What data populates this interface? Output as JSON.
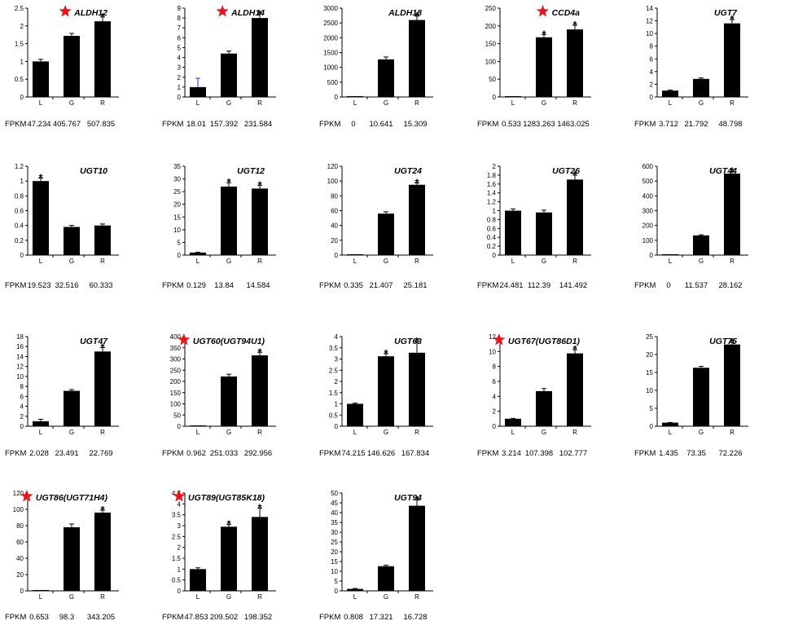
{
  "figure": {
    "fpkm_label": "FPKM",
    "highlight_color": "#e8141c",
    "bar_color": "#000000",
    "marker_color": "#000000",
    "significance_symbol": "*"
  },
  "chart_data": [
    {
      "type": "bar",
      "title": "ALDH12",
      "highlighted": true,
      "categories": [
        "L",
        "G",
        "R"
      ],
      "values": [
        1.0,
        1.72,
        2.13
      ],
      "errors": [
        0.06,
        0.07,
        0.12
      ],
      "significant": [
        false,
        false,
        true
      ],
      "ylim": [
        0,
        2.5
      ],
      "yticks": [
        0,
        0.5,
        1,
        1.5,
        2,
        2.5
      ],
      "ytick_labels": [
        "0",
        "0.5",
        "1",
        "1.5",
        "2",
        "2.5"
      ],
      "fpkm": [
        "47.234",
        "405.767",
        "507.835"
      ]
    },
    {
      "type": "bar",
      "title": "ALDH14",
      "highlighted": true,
      "categories": [
        "L",
        "G",
        "R"
      ],
      "values": [
        1.0,
        4.4,
        8.0
      ],
      "errors": [
        0.9,
        0.25,
        0.4
      ],
      "significant": [
        false,
        false,
        true
      ],
      "ylim": [
        0,
        9
      ],
      "yticks": [
        0,
        1,
        2,
        3,
        4,
        5,
        6,
        7,
        8,
        9
      ],
      "ytick_labels": [
        "0",
        "1",
        "2",
        "3",
        "4",
        "5",
        "6",
        "7",
        "8",
        "9"
      ],
      "error_colors": [
        "#2d2dd6",
        "#000000",
        "#000000"
      ],
      "fpkm": [
        "18.01",
        "157.392",
        "231.584"
      ]
    },
    {
      "type": "bar",
      "title": "ALDH18",
      "highlighted": false,
      "categories": [
        "L",
        "G",
        "R"
      ],
      "values": [
        0,
        1270,
        2600
      ],
      "errors": [
        0,
        80,
        130
      ],
      "significant": [
        false,
        false,
        true
      ],
      "ylim": [
        0,
        3000
      ],
      "yticks": [
        0,
        500,
        1000,
        1500,
        2000,
        2500,
        3000
      ],
      "ytick_labels": [
        "0",
        "500",
        "1000",
        "1500",
        "2000",
        "2500",
        "3000"
      ],
      "fpkm": [
        "0",
        "10.641",
        "15.309"
      ]
    },
    {
      "type": "bar",
      "title": "CCD4a",
      "highlighted": true,
      "categories": [
        "L",
        "G",
        "R"
      ],
      "values": [
        1,
        168,
        190
      ],
      "errors": [
        0,
        8,
        12
      ],
      "significant": [
        false,
        true,
        true
      ],
      "ylim": [
        0,
        250
      ],
      "yticks": [
        0,
        50,
        100,
        150,
        200,
        250
      ],
      "ytick_labels": [
        "0",
        "50",
        "100",
        "150",
        "200",
        "250"
      ],
      "fpkm": [
        "0.533",
        "1283.263",
        "1463.025"
      ]
    },
    {
      "type": "bar",
      "title": "UGT7",
      "highlighted": false,
      "categories": [
        "L",
        "G",
        "R"
      ],
      "values": [
        1.0,
        2.85,
        11.6
      ],
      "errors": [
        0.08,
        0.15,
        0.6
      ],
      "significant": [
        false,
        false,
        true
      ],
      "ylim": [
        0,
        14
      ],
      "yticks": [
        0,
        2,
        4,
        6,
        8,
        10,
        12,
        14
      ],
      "ytick_labels": [
        "0",
        "2",
        "4",
        "6",
        "8",
        "10",
        "12",
        "14"
      ],
      "fpkm": [
        "3.712",
        "21.792",
        "48.798"
      ]
    },
    {
      "type": "bar",
      "title": "UGT10",
      "highlighted": false,
      "categories": [
        "L",
        "G",
        "R"
      ],
      "values": [
        1.0,
        0.38,
        0.4
      ],
      "errors": [
        0.04,
        0.02,
        0.02
      ],
      "significant": [
        true,
        false,
        false
      ],
      "ylim": [
        0,
        1.2
      ],
      "yticks": [
        0,
        0.2,
        0.4,
        0.6,
        0.8,
        1,
        1.2
      ],
      "ytick_labels": [
        "0",
        "0.2",
        "0.4",
        "0.6",
        "0.8",
        "1",
        "1.2"
      ],
      "fpkm": [
        "19.523",
        "32.516",
        "60.333"
      ]
    },
    {
      "type": "bar",
      "title": "UGT12",
      "highlighted": false,
      "categories": [
        "L",
        "G",
        "R"
      ],
      "values": [
        1.0,
        27,
        26.2
      ],
      "errors": [
        0.15,
        1.5,
        1.3
      ],
      "significant": [
        false,
        true,
        true
      ],
      "ylim": [
        0,
        35
      ],
      "yticks": [
        0,
        5,
        10,
        15,
        20,
        25,
        30,
        35
      ],
      "ytick_labels": [
        "0",
        "5",
        "10",
        "15",
        "20",
        "25",
        "30",
        "35"
      ],
      "fpkm": [
        "0.129",
        "13.84",
        "14.584"
      ]
    },
    {
      "type": "bar",
      "title": "UGT24",
      "highlighted": false,
      "categories": [
        "L",
        "G",
        "R"
      ],
      "values": [
        1,
        56,
        95
      ],
      "errors": [
        0,
        2.5,
        2.5
      ],
      "significant": [
        false,
        false,
        true
      ],
      "ylim": [
        0,
        120
      ],
      "yticks": [
        0,
        20,
        40,
        60,
        80,
        100,
        120
      ],
      "ytick_labels": [
        "0",
        "20",
        "40",
        "60",
        "80",
        "100",
        "120"
      ],
      "fpkm": [
        "0.335",
        "21.407",
        "25.181"
      ]
    },
    {
      "type": "bar",
      "title": "UGT26",
      "highlighted": false,
      "categories": [
        "L",
        "G",
        "R"
      ],
      "values": [
        1.0,
        0.96,
        1.7
      ],
      "errors": [
        0.04,
        0.05,
        0.1
      ],
      "significant": [
        false,
        false,
        true
      ],
      "ylim": [
        0,
        2
      ],
      "yticks": [
        0,
        0.2,
        0.4,
        0.6,
        0.8,
        1,
        1.2,
        1.4,
        1.6,
        1.8,
        2
      ],
      "ytick_labels": [
        "0",
        "0.2",
        "0.4",
        "0.6",
        "0.8",
        "1",
        "1.2",
        "1.4",
        "1.6",
        "1.8",
        "2"
      ],
      "fpkm": [
        "24.481",
        "112.39",
        "141.492"
      ]
    },
    {
      "type": "bar",
      "title": "UGT44",
      "highlighted": false,
      "categories": [
        "L",
        "G",
        "R"
      ],
      "values": [
        1,
        133,
        550
      ],
      "errors": [
        0,
        4,
        15
      ],
      "significant": [
        false,
        false,
        true
      ],
      "ylim": [
        0,
        600
      ],
      "yticks": [
        0,
        100,
        200,
        300,
        400,
        500,
        600
      ],
      "ytick_labels": [
        "0",
        "100",
        "200",
        "300",
        "400",
        "500",
        "600"
      ],
      "fpkm": [
        "0",
        "11.537",
        "28.162"
      ]
    },
    {
      "type": "bar",
      "title": "UGT47",
      "highlighted": false,
      "categories": [
        "L",
        "G",
        "R"
      ],
      "values": [
        1.0,
        7.1,
        15
      ],
      "errors": [
        0.4,
        0.25,
        0.8
      ],
      "significant": [
        false,
        false,
        true
      ],
      "ylim": [
        0,
        18
      ],
      "yticks": [
        0,
        2,
        4,
        6,
        8,
        10,
        12,
        14,
        16,
        18
      ],
      "ytick_labels": [
        "0",
        "2",
        "4",
        "6",
        "8",
        "10",
        "12",
        "14",
        "16",
        "18"
      ],
      "fpkm": [
        "2.028",
        "23.491",
        "22.769"
      ]
    },
    {
      "type": "bar",
      "title": "UGT60",
      "title_suffix": "(UGT94U1)",
      "highlighted": true,
      "categories": [
        "L",
        "G",
        "R"
      ],
      "values": [
        1,
        222,
        316
      ],
      "errors": [
        0,
        10,
        14
      ],
      "significant": [
        false,
        false,
        true
      ],
      "ylim": [
        0,
        400
      ],
      "yticks": [
        0,
        50,
        100,
        150,
        200,
        250,
        300,
        350,
        400
      ],
      "ytick_labels": [
        "0",
        "50",
        "100",
        "150",
        "200",
        "250",
        "300",
        "350",
        "400"
      ],
      "fpkm": [
        "0.962",
        "251.033",
        "292.956"
      ]
    },
    {
      "type": "bar",
      "title": "UGT63",
      "highlighted": false,
      "categories": [
        "L",
        "G",
        "R"
      ],
      "values": [
        1.0,
        3.12,
        3.28
      ],
      "errors": [
        0.03,
        0.12,
        0.5
      ],
      "significant": [
        false,
        true,
        true
      ],
      "ylim": [
        0,
        4
      ],
      "yticks": [
        0,
        0.5,
        1,
        1.5,
        2,
        2.5,
        3,
        3.5,
        4
      ],
      "ytick_labels": [
        "0",
        "0.5",
        "1",
        "1.5",
        "2",
        "2.5",
        "3",
        "3.5",
        "4"
      ],
      "fpkm": [
        "74.215",
        "146.626",
        "167.834"
      ]
    },
    {
      "type": "bar",
      "title": "UGT67",
      "title_suffix": "(UGT86D1)",
      "highlighted": true,
      "categories": [
        "L",
        "G",
        "R"
      ],
      "values": [
        1.0,
        4.7,
        9.75
      ],
      "errors": [
        0.05,
        0.35,
        0.5
      ],
      "significant": [
        false,
        false,
        true
      ],
      "ylim": [
        0,
        12
      ],
      "yticks": [
        0,
        2,
        4,
        6,
        8,
        10,
        12
      ],
      "ytick_labels": [
        "0",
        "2",
        "4",
        "6",
        "8",
        "10",
        "12"
      ],
      "fpkm": [
        "3.214",
        "107.398",
        "102.777"
      ]
    },
    {
      "type": "bar",
      "title": "UGT75",
      "highlighted": false,
      "categories": [
        "L",
        "G",
        "R"
      ],
      "values": [
        1.0,
        16.3,
        22.8
      ],
      "errors": [
        0.05,
        0.4,
        0.6
      ],
      "significant": [
        false,
        false,
        true
      ],
      "ylim": [
        0,
        25
      ],
      "yticks": [
        0,
        5,
        10,
        15,
        20,
        25
      ],
      "ytick_labels": [
        "0",
        "5",
        "10",
        "15",
        "20",
        "25"
      ],
      "fpkm": [
        "1.435",
        "73.35",
        "72.226"
      ]
    },
    {
      "type": "bar",
      "title": "UGT86",
      "title_suffix": "(UGT71H4)",
      "highlighted": true,
      "categories": [
        "L",
        "G",
        "R"
      ],
      "values": [
        1,
        78,
        96
      ],
      "errors": [
        0,
        4,
        3
      ],
      "significant": [
        false,
        false,
        true
      ],
      "ylim": [
        0,
        120
      ],
      "yticks": [
        0,
        20,
        40,
        60,
        80,
        100,
        120
      ],
      "ytick_labels": [
        "0",
        "20",
        "40",
        "60",
        "80",
        "100",
        "120"
      ],
      "fpkm": [
        "0.653",
        "98.3",
        "343.205"
      ]
    },
    {
      "type": "bar",
      "title": "UGT89",
      "title_suffix": "(UGT85K18)",
      "highlighted": true,
      "categories": [
        "L",
        "G",
        "R"
      ],
      "values": [
        1.0,
        2.95,
        3.4
      ],
      "errors": [
        0.06,
        0.1,
        0.4
      ],
      "significant": [
        false,
        true,
        true
      ],
      "ylim": [
        0,
        4.5
      ],
      "yticks": [
        0,
        0.5,
        1,
        1.5,
        2,
        2.5,
        3,
        3.5,
        4,
        4.5
      ],
      "ytick_labels": [
        "0",
        "0.5",
        "1",
        "1.5",
        "2",
        "2.5",
        "3",
        "3.5",
        "4",
        "4.5"
      ],
      "fpkm": [
        "47.853",
        "209.502",
        "198.352"
      ]
    },
    {
      "type": "bar",
      "title": "UGT94",
      "highlighted": false,
      "categories": [
        "L",
        "G",
        "R"
      ],
      "values": [
        1.0,
        12.6,
        43.5
      ],
      "errors": [
        0.2,
        0.5,
        3
      ],
      "significant": [
        false,
        false,
        true
      ],
      "ylim": [
        0,
        50
      ],
      "yticks": [
        0,
        5,
        10,
        15,
        20,
        25,
        30,
        35,
        40,
        45,
        50
      ],
      "ytick_labels": [
        "0",
        "5",
        "10",
        "15",
        "20",
        "25",
        "30",
        "35",
        "40",
        "45",
        "50"
      ],
      "fpkm": [
        "0.808",
        "17.321",
        "16.728"
      ]
    }
  ]
}
